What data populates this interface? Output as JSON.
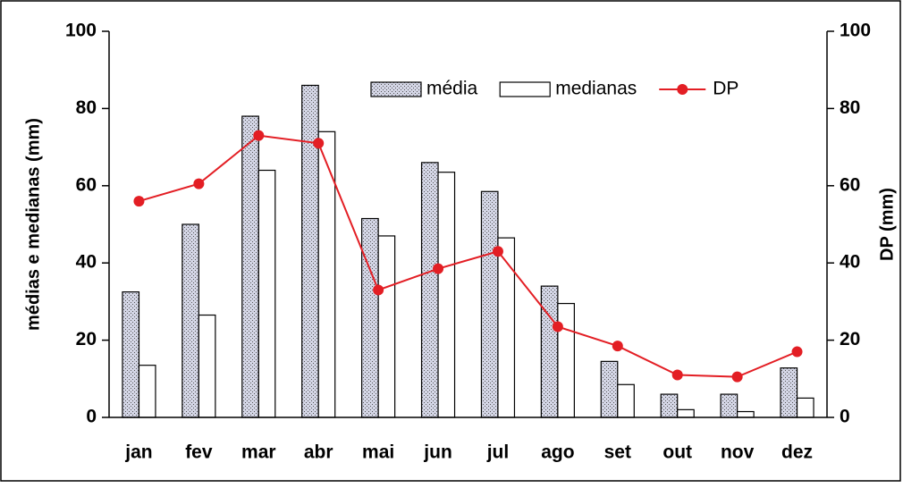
{
  "chart_data": {
    "type": "bar-line",
    "y_label": "médias e medianas (mm)",
    "y2_label": "DP (mm)",
    "categories": [
      "jan",
      "fev",
      "mar",
      "abr",
      "mai",
      "jun",
      "jul",
      "ago",
      "set",
      "out",
      "nov",
      "dez"
    ],
    "series": [
      {
        "name": "média",
        "type": "bar",
        "color": "#d4d6e6",
        "values": [
          32.5,
          50,
          78,
          86,
          51.5,
          66,
          58.5,
          34,
          14.5,
          6,
          6,
          12.8
        ]
      },
      {
        "name": "medianas",
        "type": "bar",
        "color": "#ffffff",
        "values": [
          13.5,
          26.5,
          64,
          74,
          47,
          63.5,
          46.5,
          29.5,
          8.5,
          2,
          1.5,
          5
        ]
      },
      {
        "name": "DP",
        "type": "line",
        "axis": "y2",
        "color": "#e31e24",
        "values": [
          56,
          60.5,
          73,
          71,
          33,
          38.5,
          43,
          23.5,
          18.5,
          11,
          10.5,
          17
        ]
      }
    ],
    "ylim": [
      0,
      100
    ],
    "yticks": [
      0,
      20,
      40,
      60,
      80,
      100
    ],
    "y2lim": [
      0,
      100
    ],
    "y2ticks": [
      0,
      20,
      40,
      60,
      80,
      100
    ]
  }
}
